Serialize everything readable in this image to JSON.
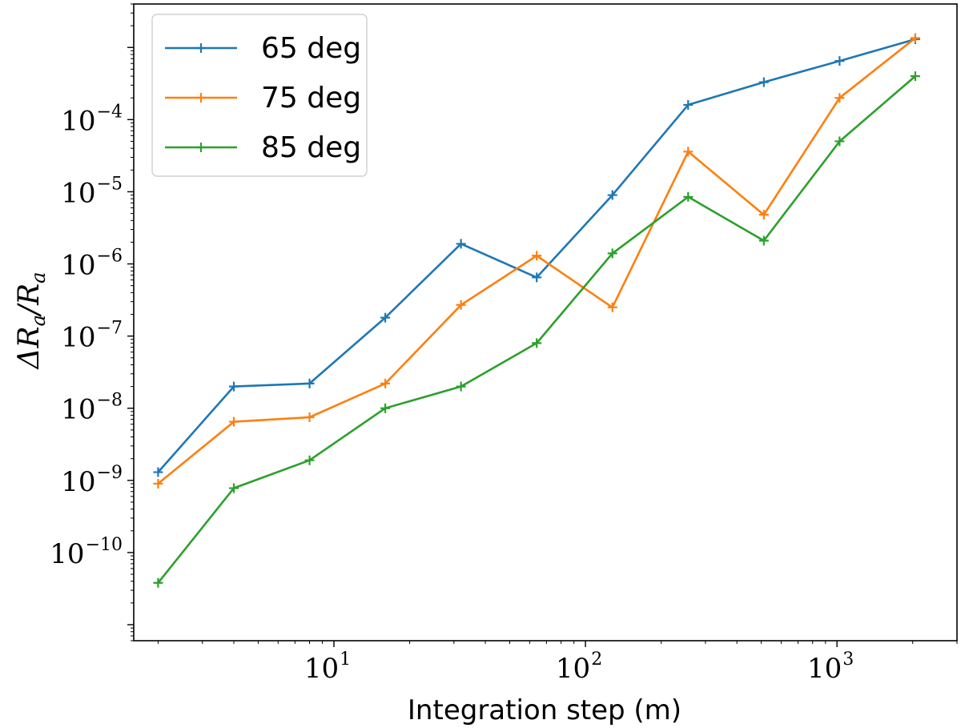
{
  "chart_data": {
    "type": "line",
    "title": "",
    "xlabel": "Integration step (m)",
    "ylabel": "ΔR_a / R_a",
    "xscale": "log",
    "yscale": "log",
    "xlim": [
      1.6,
      3000
    ],
    "ylim": [
      6e-12,
      0.004
    ],
    "x": [
      2,
      4,
      8,
      16,
      32,
      64,
      128,
      256,
      512,
      1024,
      2048
    ],
    "x_ticks": [
      {
        "value": 10,
        "label": "10",
        "exp": "1"
      },
      {
        "value": 100,
        "label": "10",
        "exp": "2"
      },
      {
        "value": 1000,
        "label": "10",
        "exp": "3"
      }
    ],
    "y_ticks": [
      {
        "value": 1e-10,
        "label": "10",
        "exp": "−10"
      },
      {
        "value": 1e-09,
        "label": "10",
        "exp": "−9"
      },
      {
        "value": 1e-08,
        "label": "10",
        "exp": "−8"
      },
      {
        "value": 1e-07,
        "label": "10",
        "exp": "−7"
      },
      {
        "value": 1e-06,
        "label": "10",
        "exp": "−6"
      },
      {
        "value": 1e-05,
        "label": "10",
        "exp": "−5"
      },
      {
        "value": 0.0001,
        "label": "10",
        "exp": "−4"
      }
    ],
    "legend_position": "top-left",
    "grid": false,
    "series": [
      {
        "name": "65 deg",
        "color": "#1f77b4",
        "values": [
          1.3e-09,
          2e-08,
          2.2e-08,
          1.8e-07,
          1.9e-06,
          6.5e-07,
          9e-06,
          0.00016,
          0.00033,
          0.00065,
          0.0013
        ]
      },
      {
        "name": "75 deg",
        "color": "#ff7f0e",
        "values": [
          9e-10,
          6.5e-09,
          7.5e-09,
          2.2e-08,
          2.7e-07,
          1.3e-06,
          2.5e-07,
          3.6e-05,
          4.8e-06,
          0.0002,
          0.00135
        ]
      },
      {
        "name": "85 deg",
        "color": "#2ca02c",
        "values": [
          3.8e-11,
          7.8e-10,
          1.9e-09,
          1e-08,
          2e-08,
          8e-08,
          1.4e-06,
          8.5e-06,
          2.1e-06,
          5e-05,
          0.0004
        ]
      }
    ]
  }
}
